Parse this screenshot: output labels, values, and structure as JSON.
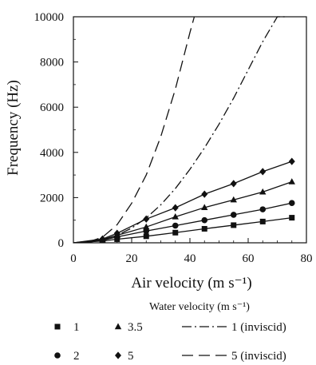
{
  "chart_data": {
    "type": "line",
    "xlabel": "Air velocity (m s⁻¹)",
    "ylabel": "Frequency (Hz)",
    "xlim": [
      0,
      80
    ],
    "ylim": [
      0,
      10000
    ],
    "x_ticks": [
      0,
      20,
      40,
      60,
      80
    ],
    "x_tick_labels": [
      "0",
      "20",
      "40",
      "60",
      "80"
    ],
    "y_ticks": [
      0,
      2000,
      4000,
      6000,
      8000,
      10000
    ],
    "y_tick_labels": [
      "0",
      "2000",
      "4000",
      "6000",
      "8000",
      "10000"
    ],
    "grid": false,
    "legend_title": "Water velocity (m s⁻¹)",
    "legend_placement": "bottom",
    "series": [
      {
        "name": "1",
        "marker": "square",
        "line": "solid",
        "x": [
          10,
          15,
          25,
          35,
          45,
          55,
          65,
          75
        ],
        "y": [
          80,
          160,
          290,
          450,
          620,
          780,
          940,
          1110
        ]
      },
      {
        "name": "2",
        "marker": "circle",
        "line": "solid",
        "x": [
          10,
          15,
          25,
          35,
          45,
          55,
          65,
          75
        ],
        "y": [
          110,
          260,
          520,
          760,
          1000,
          1240,
          1480,
          1760
        ]
      },
      {
        "name": "3.5",
        "marker": "triangle",
        "line": "solid",
        "x": [
          10,
          15,
          25,
          35,
          45,
          55,
          65,
          75
        ],
        "y": [
          140,
          330,
          700,
          1150,
          1560,
          1900,
          2250,
          2700
        ]
      },
      {
        "name": "5",
        "marker": "diamond",
        "line": "solid",
        "x": [
          10,
          15,
          25,
          35,
          45,
          55,
          65,
          75
        ],
        "y": [
          170,
          420,
          1050,
          1550,
          2150,
          2620,
          3150,
          3600
        ]
      },
      {
        "name": "1 (inviscid)",
        "marker": "none",
        "line": "dash-dot",
        "x": [
          5,
          10,
          15,
          20,
          25,
          30,
          35,
          40,
          45,
          50,
          55,
          60,
          65,
          70,
          73.5
        ],
        "y": [
          20,
          120,
          330,
          650,
          1100,
          1680,
          2400,
          3250,
          4200,
          5250,
          6400,
          7650,
          8900,
          10000,
          10000
        ]
      },
      {
        "name": "5 (inviscid)",
        "marker": "none",
        "line": "dash",
        "x": [
          5,
          10,
          15,
          20,
          25,
          30,
          35,
          38,
          40,
          41.5
        ],
        "y": [
          30,
          250,
          800,
          1750,
          3000,
          4700,
          6800,
          8300,
          9300,
          10000
        ]
      }
    ]
  },
  "legend": {
    "title": "Water velocity (m s⁻¹)",
    "items": [
      {
        "label": "1",
        "symbol": "square"
      },
      {
        "label": "3.5",
        "symbol": "triangle"
      },
      {
        "label": "1 (inviscid)",
        "symbol": "dash-dot"
      },
      {
        "label": "2",
        "symbol": "circle"
      },
      {
        "label": "5",
        "symbol": "diamond"
      },
      {
        "label": "5 (inviscid)",
        "symbol": "dash"
      }
    ]
  }
}
